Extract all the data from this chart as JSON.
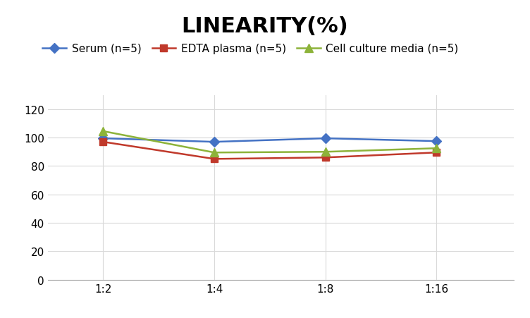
{
  "title": "LINEARITY(%)",
  "x_labels": [
    "1:2",
    "1:4",
    "1:8",
    "1:16"
  ],
  "x_positions": [
    0,
    1,
    2,
    3
  ],
  "series": [
    {
      "label": "Serum (n=5)",
      "values": [
        99.5,
        97.0,
        99.5,
        97.5
      ],
      "color": "#4472C4",
      "marker": "D",
      "markersize": 7,
      "linewidth": 1.8
    },
    {
      "label": "EDTA plasma (n=5)",
      "values": [
        97.0,
        85.0,
        86.0,
        89.5
      ],
      "color": "#C0392B",
      "marker": "s",
      "markersize": 7,
      "linewidth": 1.8
    },
    {
      "label": "Cell culture media (n=5)",
      "values": [
        104.5,
        89.5,
        90.0,
        92.5
      ],
      "color": "#8DB33A",
      "marker": "^",
      "markersize": 8,
      "linewidth": 1.8
    }
  ],
  "ylim": [
    0,
    130
  ],
  "yticks": [
    0,
    20,
    40,
    60,
    80,
    100,
    120
  ],
  "grid_color": "#D9D9D9",
  "background_color": "#FFFFFF",
  "title_fontsize": 22,
  "legend_fontsize": 11,
  "tick_fontsize": 11,
  "xlim": [
    -0.5,
    3.7
  ]
}
